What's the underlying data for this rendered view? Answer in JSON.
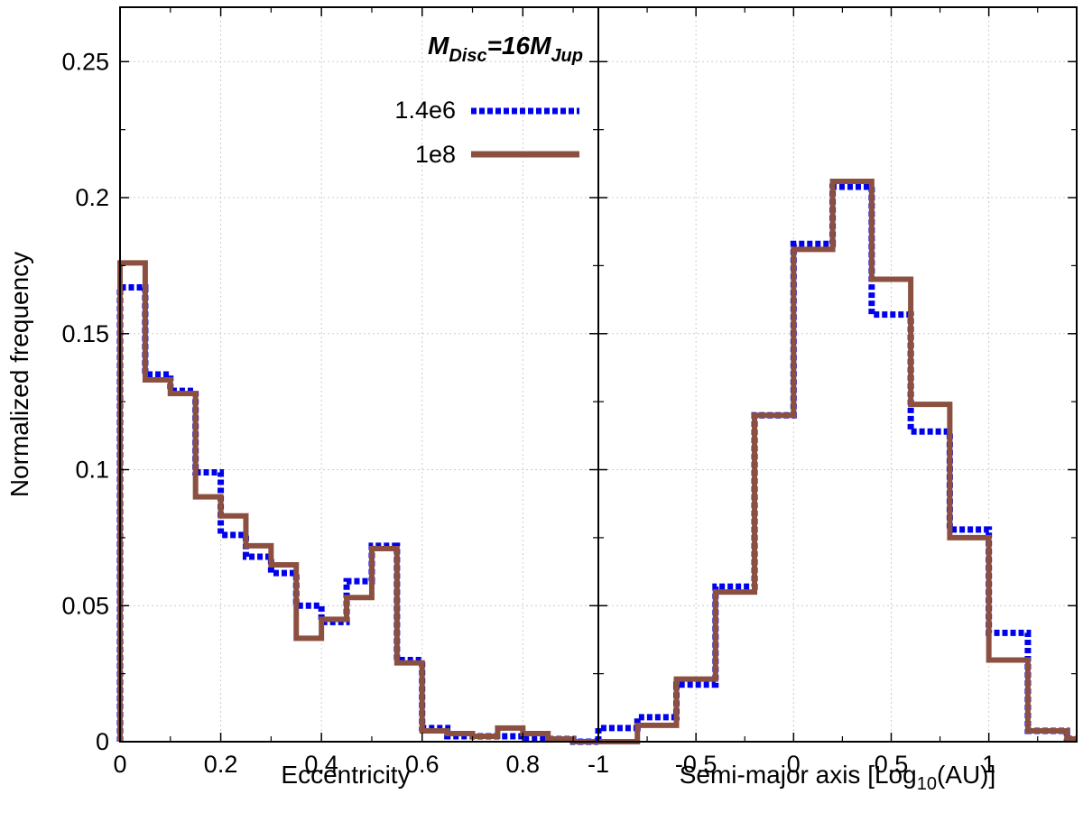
{
  "figure": {
    "annotation": {
      "main": "M",
      "sub1": "Disc",
      "mid": "=16M",
      "sub2": "Jup"
    },
    "ylabel": "Normalized frequency"
  },
  "chart_data": [
    {
      "type": "line",
      "step": true,
      "panel": "left",
      "xlabel": "Eccentricity",
      "ylabel": "Normalized frequency",
      "xlim": [
        0,
        0.95
      ],
      "ylim": [
        0,
        0.27
      ],
      "xticks": [
        0,
        0.2,
        0.4,
        0.6,
        0.8
      ],
      "xtick_labels": [
        "0",
        "0.2",
        "0.4",
        "0.6",
        "0.8"
      ],
      "yticks": [
        0,
        0.05,
        0.1,
        0.15,
        0.2,
        0.25
      ],
      "ytick_labels": [
        "0",
        "0.05",
        "0.1",
        "0.15",
        "0.2",
        "0.25"
      ],
      "grid": true,
      "bin_edges": [
        0,
        0.05,
        0.1,
        0.15,
        0.2,
        0.25,
        0.3,
        0.35,
        0.4,
        0.45,
        0.5,
        0.55,
        0.6,
        0.65,
        0.7,
        0.75,
        0.8,
        0.85,
        0.9,
        0.95
      ],
      "series": [
        {
          "name": "1.4e6",
          "color": "#0000ee",
          "dash": "dotted",
          "values": [
            0.167,
            0.135,
            0.129,
            0.099,
            0.076,
            0.068,
            0.062,
            0.05,
            0.044,
            0.059,
            0.072,
            0.03,
            0.005,
            0.002,
            0.002,
            0.002,
            0.001,
            0.001,
            0.0
          ]
        },
        {
          "name": "1e8",
          "color": "#8b5040",
          "dash": "solid",
          "values": [
            0.176,
            0.133,
            0.128,
            0.09,
            0.083,
            0.072,
            0.065,
            0.038,
            0.045,
            0.053,
            0.071,
            0.029,
            0.004,
            0.003,
            0.002,
            0.005,
            0.003,
            0.001,
            0.0
          ]
        }
      ],
      "legend": {
        "placement": "top-right"
      }
    },
    {
      "type": "line",
      "step": true,
      "panel": "right",
      "xlabel": "Semi-major axis [Log10(AU)]",
      "xlabel_parts": {
        "pre": "Semi-major axis [Log",
        "sub": "10",
        "post": "(AU)]"
      },
      "xlim": [
        -1,
        1.45
      ],
      "ylim": [
        0,
        0.27
      ],
      "xticks": [
        -1,
        -0.5,
        0,
        0.5,
        1
      ],
      "xtick_labels": [
        "-1",
        "-0.5",
        "0",
        "0.5",
        "1"
      ],
      "grid": true,
      "bin_edges": [
        -1.0,
        -0.8,
        -0.6,
        -0.4,
        -0.2,
        0.0,
        0.2,
        0.4,
        0.6,
        0.8,
        1.0,
        1.2,
        1.4,
        1.45
      ],
      "series": [
        {
          "name": "1.4e6",
          "color": "#0000ee",
          "dash": "dotted",
          "values": [
            0.005,
            0.009,
            0.021,
            0.057,
            0.12,
            0.183,
            0.204,
            0.157,
            0.114,
            0.078,
            0.04,
            0.004,
            0.001
          ]
        },
        {
          "name": "1e8",
          "color": "#8b5040",
          "dash": "solid",
          "values": [
            0.0,
            0.006,
            0.023,
            0.055,
            0.12,
            0.181,
            0.206,
            0.17,
            0.124,
            0.075,
            0.03,
            0.004,
            0.001
          ]
        }
      ]
    }
  ]
}
